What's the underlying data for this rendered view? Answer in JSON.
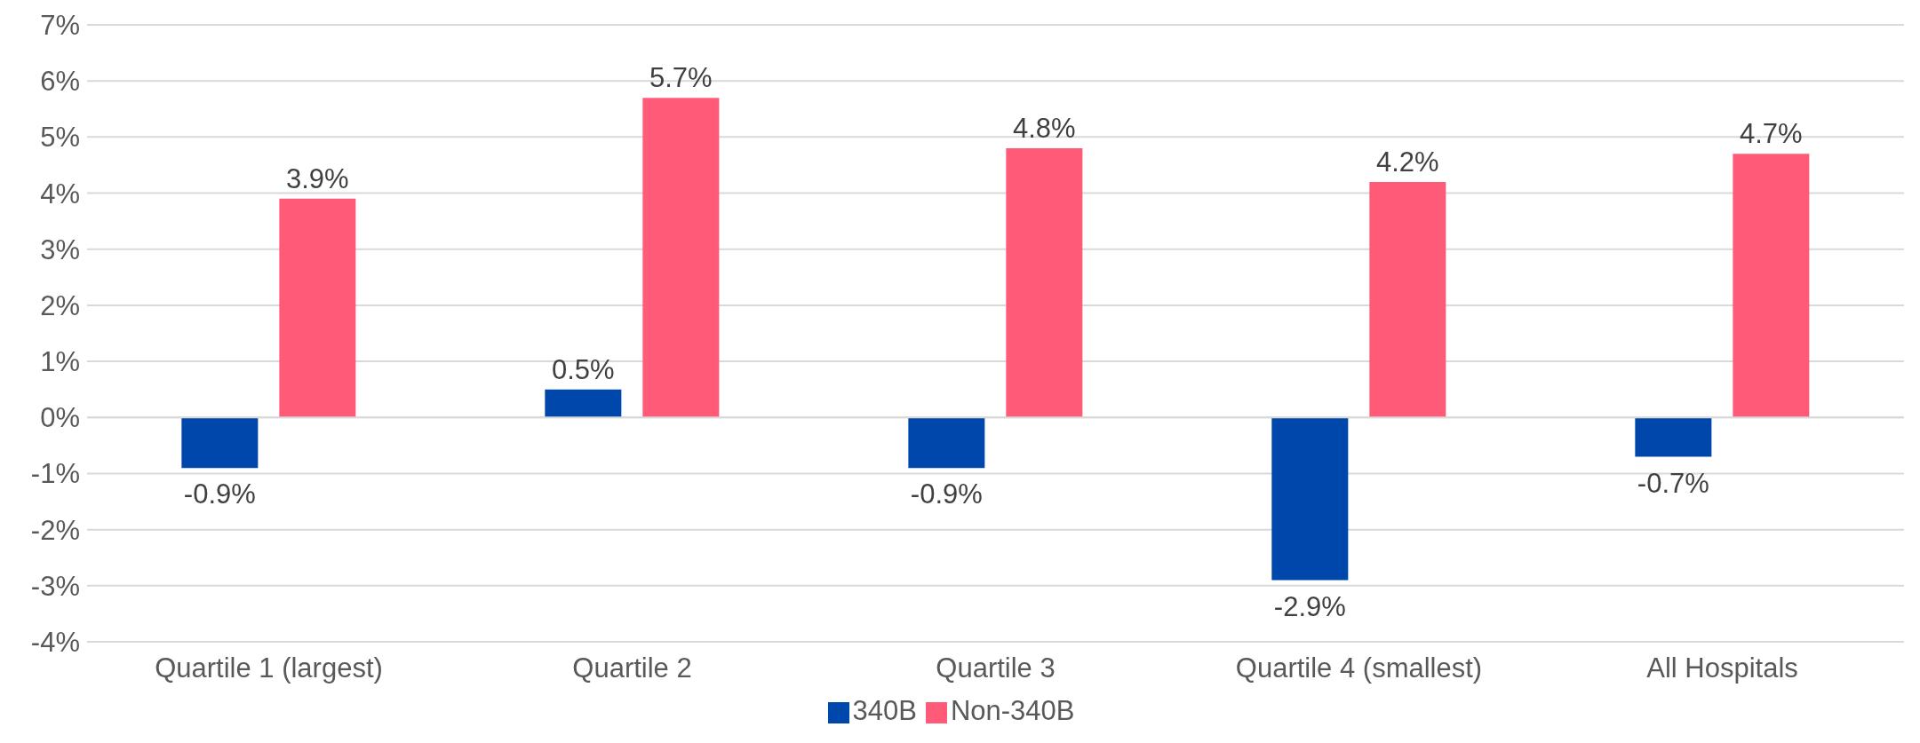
{
  "chart_data": {
    "type": "bar",
    "categories": [
      "Quartile 1 (largest)",
      "Quartile 2",
      "Quartile 3",
      "Quartile 4 (smallest)",
      "All Hospitals"
    ],
    "series": [
      {
        "name": "340B",
        "color": "#0047ab",
        "values": [
          -0.9,
          0.5,
          -0.9,
          -2.9,
          -0.7
        ],
        "value_labels": [
          "-0.9%",
          "0.5%",
          "-0.9%",
          "-2.9%",
          "-0.7%"
        ]
      },
      {
        "name": "Non-340B",
        "color": "#ff5a78",
        "values": [
          3.9,
          5.7,
          4.8,
          4.2,
          4.7
        ],
        "value_labels": [
          "3.9%",
          "5.7%",
          "4.8%",
          "4.2%",
          "4.7%"
        ]
      }
    ],
    "ylim": [
      -4,
      7
    ],
    "yticks": [
      {
        "value": -4,
        "label": "-4%"
      },
      {
        "value": -3,
        "label": "-3%"
      },
      {
        "value": -2,
        "label": "-2%"
      },
      {
        "value": -1,
        "label": "-1%"
      },
      {
        "value": 0,
        "label": "0%"
      },
      {
        "value": 1,
        "label": "1%"
      },
      {
        "value": 2,
        "label": "2%"
      },
      {
        "value": 3,
        "label": "3%"
      },
      {
        "value": 4,
        "label": "4%"
      },
      {
        "value": 5,
        "label": "5%"
      },
      {
        "value": 6,
        "label": "6%"
      },
      {
        "value": 7,
        "label": "7%"
      }
    ],
    "grid": "y",
    "legend": "bottom"
  }
}
